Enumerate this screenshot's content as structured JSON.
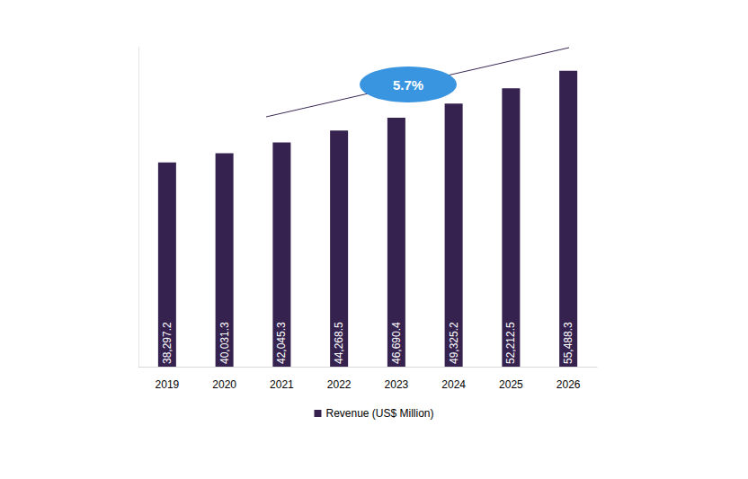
{
  "chart_data": {
    "type": "bar",
    "categories": [
      "2019",
      "2020",
      "2021",
      "2022",
      "2023",
      "2024",
      "2025",
      "2026"
    ],
    "series": [
      {
        "name": "Revenue (US$ Million)",
        "color": "#35224f",
        "values": [
          38297.2,
          40031.3,
          42045.3,
          44268.5,
          46690.4,
          49325.2,
          52212.5,
          55488.3
        ],
        "value_labels": [
          "38,297.2",
          "40,031.3",
          "42,045.3",
          "44,268.5",
          "46,690.4",
          "49,325.2",
          "52,212.5",
          "55,488.3"
        ]
      }
    ],
    "ylim": [
      0,
      60000
    ],
    "annotation": "5.7%",
    "data_labels": true,
    "tick_labels": "x",
    "grid": false,
    "legend": "bottom"
  }
}
